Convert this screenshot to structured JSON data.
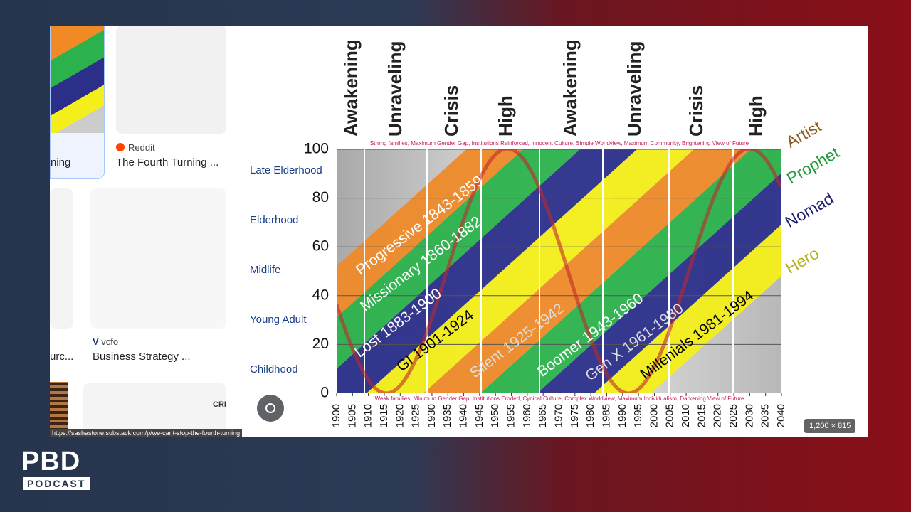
{
  "logo": {
    "line1": "PBD",
    "line2": "PODCAST"
  },
  "sidebar": {
    "card1": {
      "label": "ning"
    },
    "card2": {
      "source": "Reddit",
      "title": "The Fourth Turning ..."
    },
    "card3": {
      "label": "urc..."
    },
    "card4": {
      "source": "vcfo",
      "title": "Business Strategy ..."
    },
    "thumb_text": "CRI"
  },
  "status_url": "https://sashastone.substack.com/p/we-cant-stop-the-fourth-turning",
  "image_size": "1,200 × 815",
  "chart": {
    "turnings": [
      "Awakening",
      "Unraveling",
      "Crisis",
      "High",
      "Awakening",
      "Unraveling",
      "Crisis",
      "High"
    ],
    "top_note": "Strong families, Maximum Gender Gap, Institutions Reinforced, Innocent Culture, Simple Worldview, Maximum Community, Brightening View of Future",
    "bottom_note": "Weak families, Minimum Gender Gap, Institutions Eroded, Cynical Culture, Complex Worldview, Maximum Individualism, Darkening View of Future",
    "life_stages": [
      "Late Elderhood",
      "Elderhood",
      "Midlife",
      "Young Adult",
      "Childhood"
    ],
    "ylim": [
      0,
      100
    ],
    "yticks": [
      0,
      20,
      40,
      60,
      80,
      100
    ],
    "xlim": [
      1900,
      2040
    ],
    "xticks": [
      1900,
      1905,
      1910,
      1915,
      1920,
      1925,
      1930,
      1935,
      1940,
      1945,
      1950,
      1955,
      1960,
      1965,
      1970,
      1975,
      1980,
      1985,
      1990,
      1995,
      2000,
      2005,
      2010,
      2015,
      2020,
      2025,
      2030,
      2035,
      2040
    ],
    "generations": [
      "Progressive 1843-1859",
      "Missionary 1860-1882",
      "Lost 1883-1900",
      "GI 1901-1924",
      "Silent 1925-1942",
      "Boomer 1943-1960",
      "Gen X 1961-1980",
      "Millenials 1981-1994"
    ],
    "archetypes": [
      "Artist",
      "Prophet",
      "Nomad",
      "Hero"
    ]
  }
}
